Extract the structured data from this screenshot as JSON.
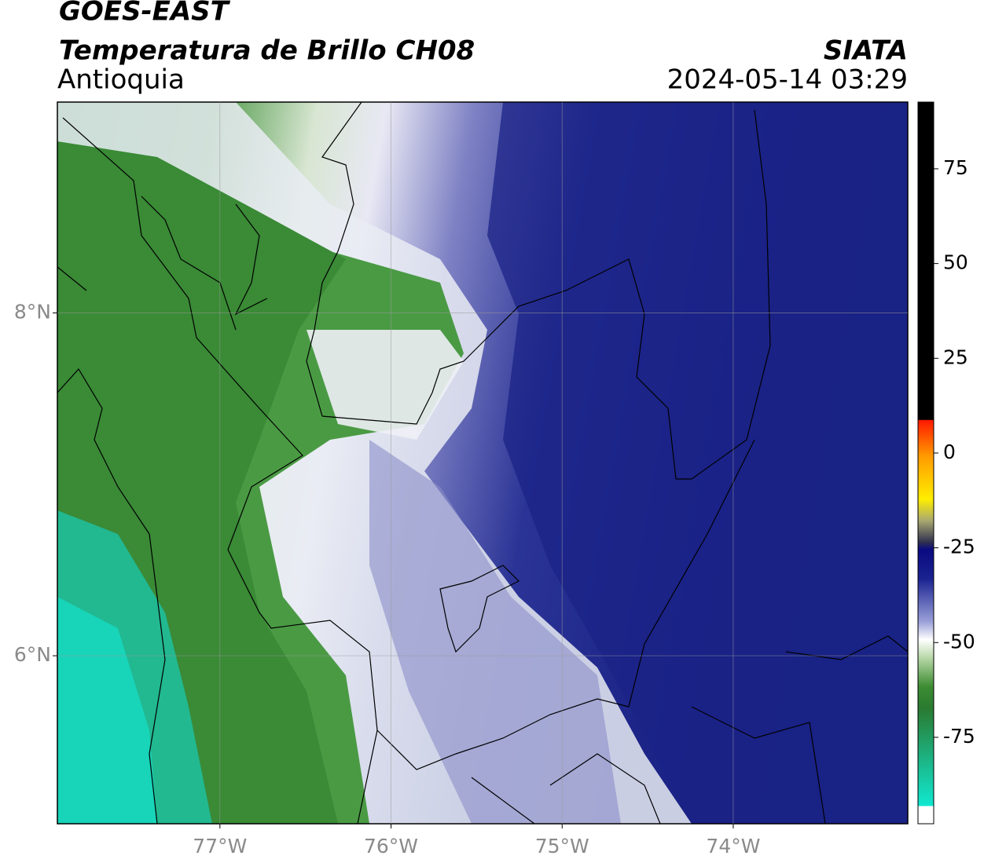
{
  "header": {
    "title": "GOES-EAST",
    "subtitle": "Temperatura de Brillo CH08",
    "region": "Antioquia",
    "source": "SIATA",
    "timestamp": "2024-05-14 03:29"
  },
  "map": {
    "xlim": [
      -77.95,
      -72.98
    ],
    "ylim": [
      5.02,
      9.23
    ],
    "xticks": [
      {
        "value": -77,
        "label": "77°W"
      },
      {
        "value": -76,
        "label": "76°W"
      },
      {
        "value": -75,
        "label": "75°W"
      },
      {
        "value": -74,
        "label": "74°W"
      }
    ],
    "yticks": [
      {
        "value": 6,
        "label": "6°N"
      },
      {
        "value": 8,
        "label": "8°N"
      }
    ],
    "grid": true
  },
  "colorbar": {
    "clim": [
      -97.8,
      92.6
    ],
    "ticks": [
      75,
      50,
      25,
      0,
      -25,
      -50,
      -75
    ]
  }
}
